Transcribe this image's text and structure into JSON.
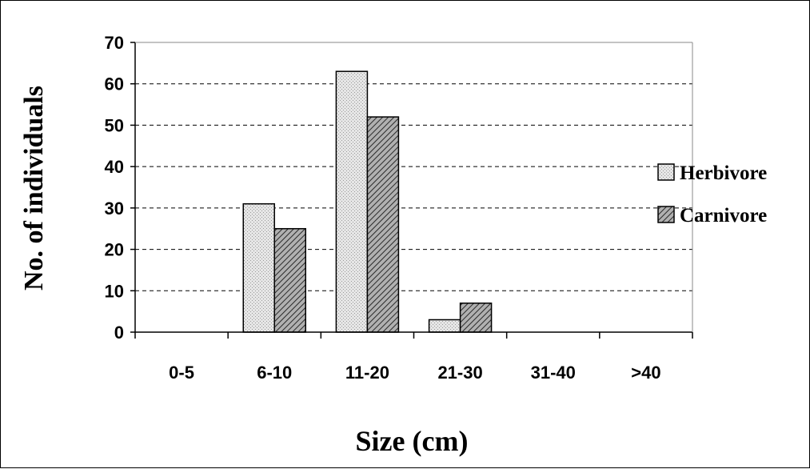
{
  "chart_data": {
    "type": "bar",
    "categories": [
      "0-5",
      "6-10",
      "11-20",
      "21-30",
      "31-40",
      ">40"
    ],
    "series": [
      {
        "name": "Herbivore",
        "values": [
          0,
          31,
          63,
          3,
          0,
          0
        ],
        "pattern": "dotted",
        "color": "#d9d9d9"
      },
      {
        "name": "Carnivore",
        "values": [
          0,
          25,
          52,
          7,
          0,
          0
        ],
        "pattern": "diagonal-hatch",
        "color": "#9a9a9a"
      }
    ],
    "title": "",
    "xlabel": "Size (cm)",
    "ylabel": "No. of individuals",
    "ylim": [
      0,
      70
    ],
    "yticks": [
      0,
      10,
      20,
      30,
      40,
      50,
      60,
      70
    ],
    "grid": "horizontal dashed",
    "legend_position": "right"
  }
}
